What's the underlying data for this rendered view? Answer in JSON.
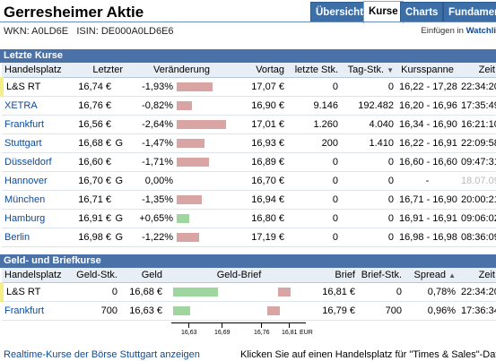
{
  "header": {
    "title": "Gerresheimer Aktie",
    "wkn": "WKN: A0LD6E",
    "isin": "ISIN: DE000A0LD6E6",
    "link_prefix": "Einfügen in",
    "link_label": "Watchli"
  },
  "tabs": [
    {
      "label": "Übersicht"
    },
    {
      "label": "Kurse"
    },
    {
      "label": "Charts"
    },
    {
      "label": "Fundament"
    }
  ],
  "letzte": {
    "section_title": "Letzte Kurse",
    "columns": [
      "Handelsplatz",
      "Letzter",
      "Veränderung",
      "Vortag",
      "letzte Stk.",
      "Tag-Stk.",
      "Kursspanne",
      "Zeit"
    ],
    "rows": [
      {
        "place": "L&S RT",
        "last": "16,74 €",
        "flag": "",
        "change": "-1,93%",
        "change_pct": -1.93,
        "prev": "17,07 €",
        "last_qty": "0",
        "day_qty": "0",
        "range": "16,22 - 17,28",
        "time": "22:34:20",
        "link": false,
        "highlight": true
      },
      {
        "place": "XETRA",
        "last": "16,76 €",
        "flag": "",
        "change": "-0,82%",
        "change_pct": -0.82,
        "prev": "16,90 €",
        "last_qty": "9.146",
        "day_qty": "192.482",
        "range": "16,20 - 16,96",
        "time": "17:35:49",
        "link": true,
        "highlight": false
      },
      {
        "place": "Frankfurt",
        "last": "16,56 €",
        "flag": "",
        "change": "-2,64%",
        "change_pct": -2.64,
        "prev": "17,01 €",
        "last_qty": "1.260",
        "day_qty": "4.040",
        "range": "16,34 - 16,90",
        "time": "16:21:10",
        "link": true,
        "highlight": false
      },
      {
        "place": "Stuttgart",
        "last": "16,68 €",
        "flag": "G",
        "change": "-1,47%",
        "change_pct": -1.47,
        "prev": "16,93 €",
        "last_qty": "200",
        "day_qty": "1.410",
        "range": "16,22 - 16,91",
        "time": "22:09:58",
        "link": true,
        "highlight": false
      },
      {
        "place": "Düsseldorf",
        "last": "16,60 €",
        "flag": "",
        "change": "-1,71%",
        "change_pct": -1.71,
        "prev": "16,89 €",
        "last_qty": "0",
        "day_qty": "0",
        "range": "16,60 - 16,60",
        "time": "09:47:31",
        "link": true,
        "highlight": false
      },
      {
        "place": "Hannover",
        "last": "16,70 €",
        "flag": "G",
        "change": "0,00%",
        "change_pct": 0,
        "prev": "16,70 €",
        "last_qty": "0",
        "day_qty": "0",
        "range": "-",
        "time": "18.07.09",
        "link": true,
        "highlight": false,
        "faded_time": true
      },
      {
        "place": "München",
        "last": "16,71 €",
        "flag": "",
        "change": "-1,35%",
        "change_pct": -1.35,
        "prev": "16,94 €",
        "last_qty": "0",
        "day_qty": "0",
        "range": "16,71 - 16,90",
        "time": "20:00:21",
        "link": true,
        "highlight": false
      },
      {
        "place": "Hamburg",
        "last": "16,91 €",
        "flag": "G",
        "change": "+0,65%",
        "change_pct": 0.65,
        "prev": "16,80 €",
        "last_qty": "0",
        "day_qty": "0",
        "range": "16,91 - 16,91",
        "time": "09:06:02",
        "link": true,
        "highlight": false
      },
      {
        "place": "Berlin",
        "last": "16,98 €",
        "flag": "G",
        "change": "-1,22%",
        "change_pct": -1.22,
        "prev": "17,19 €",
        "last_qty": "0",
        "day_qty": "0",
        "range": "16,98 - 16,98",
        "time": "08:36:09",
        "link": true,
        "highlight": false
      }
    ]
  },
  "geld": {
    "section_title": "Geld- und Briefkurse",
    "columns": [
      "Handelsplatz",
      "Geld-Stk.",
      "Geld",
      "Geld-Brief",
      "Brief",
      "Brief-Stk.",
      "Spread",
      "Zeit"
    ],
    "rows": [
      {
        "place": "L&S RT",
        "bid_qty": "0",
        "bid": "16,68 €",
        "ask": "16,81 €",
        "ask_qty": "0",
        "spread": "0,78%",
        "time": "22:34:20",
        "bid_val": 16.68,
        "ask_val": 16.81,
        "link": false,
        "highlight": true
      },
      {
        "place": "Frankfurt",
        "bid_qty": "700",
        "bid": "16,63 €",
        "ask": "16,79 €",
        "ask_qty": "700",
        "spread": "0,96%",
        "time": "17:36:34",
        "bid_val": 16.63,
        "ask_val": 16.79,
        "link": true,
        "highlight": false
      }
    ],
    "axis_ticks": [
      "16,63",
      "16,69",
      "16,76",
      "16,81"
    ],
    "axis_unit": "EUR"
  },
  "footer": {
    "left_link": "Realtime-Kurse der Börse Stuttgart anzeigen",
    "right_text": "Klicken Sie auf einen Handelsplatz für \"Times & Sales\"-Daten"
  },
  "colors": {
    "section_bar": "#4b72a8",
    "neg_bar": "#d9a4a4",
    "pos_bar": "#9fd69f",
    "link": "#0b4a9a"
  }
}
